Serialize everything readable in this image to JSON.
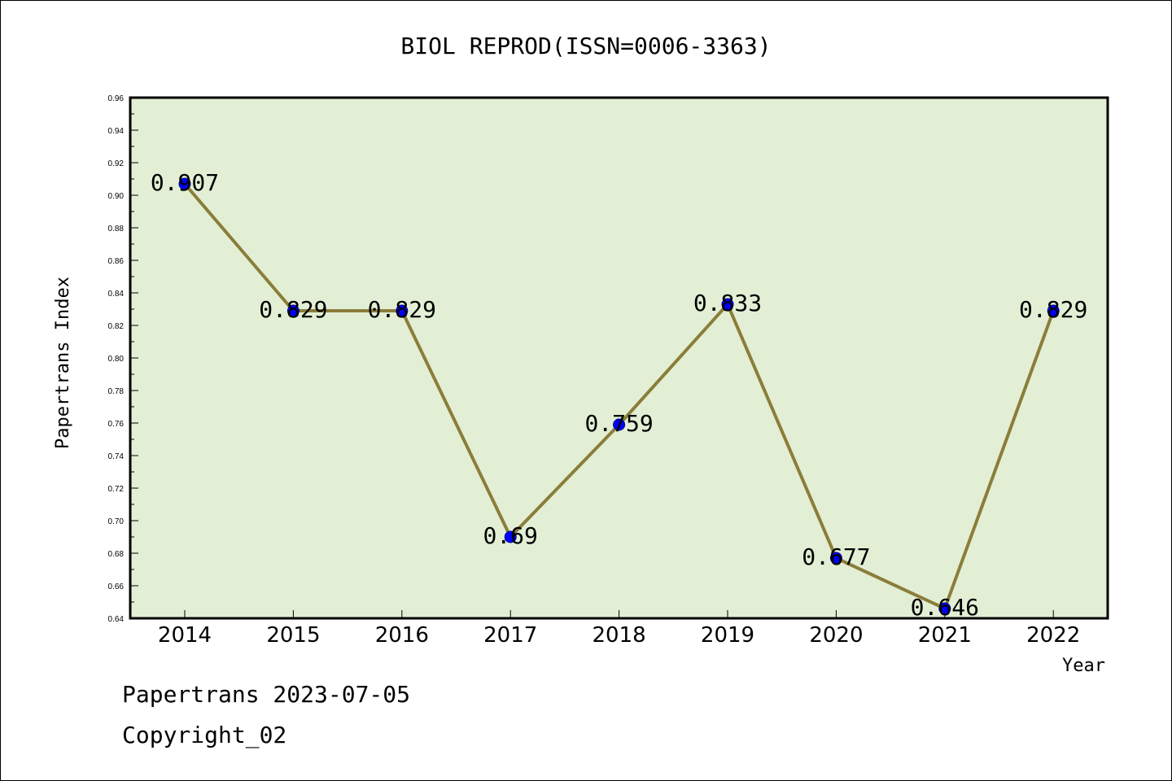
{
  "chart_data": {
    "type": "line",
    "title": "BIOL REPROD(ISSN=0006-3363)",
    "xlabel": "Year",
    "ylabel": "Papertrans Index",
    "categories": [
      "2014",
      "2015",
      "2016",
      "2017",
      "2018",
      "2019",
      "2020",
      "2021",
      "2022"
    ],
    "values": [
      0.907,
      0.829,
      0.829,
      0.69,
      0.759,
      0.833,
      0.677,
      0.646,
      0.829
    ],
    "data_labels": [
      "0.907",
      "0.829",
      "0.829",
      "0.69",
      "0.759",
      "0.833",
      "0.677",
      "0.646",
      "0.829"
    ],
    "ylim": [
      0.64,
      0.96
    ],
    "yticks": [
      "0.64",
      "0.66",
      "0.68",
      "0.70",
      "0.72",
      "0.74",
      "0.76",
      "0.78",
      "0.80",
      "0.82",
      "0.84",
      "0.86",
      "0.88",
      "0.90",
      "0.92",
      "0.94",
      "0.96"
    ],
    "grid": false,
    "colors": {
      "plot_bg": "#e2efd5",
      "line": "#8b7d3a",
      "marker": "#0000ff"
    }
  },
  "footer": {
    "line1": "Papertrans 2023-07-05",
    "line2": "Copyright_02"
  }
}
